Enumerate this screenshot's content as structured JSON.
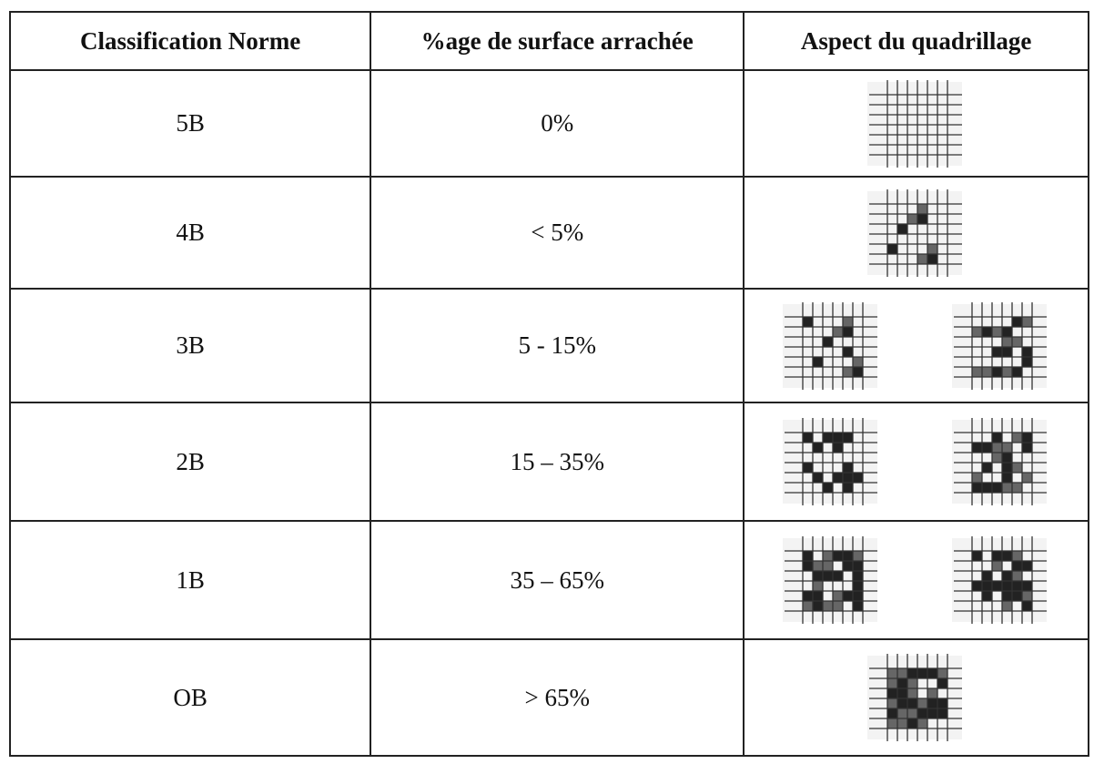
{
  "table": {
    "header": [
      "Classification Norme",
      "%age de surface arrachée",
      "Aspect du quadrillage"
    ],
    "rows": [
      [
        "5B",
        "0%"
      ],
      [
        "4B",
        "< 5%"
      ],
      [
        "3B",
        "5 - 15%"
      ],
      [
        "2B",
        "15 – 35%"
      ],
      [
        "1B",
        "35 – 65%"
      ],
      [
        "OB",
        "> 65%"
      ]
    ]
  }
}
